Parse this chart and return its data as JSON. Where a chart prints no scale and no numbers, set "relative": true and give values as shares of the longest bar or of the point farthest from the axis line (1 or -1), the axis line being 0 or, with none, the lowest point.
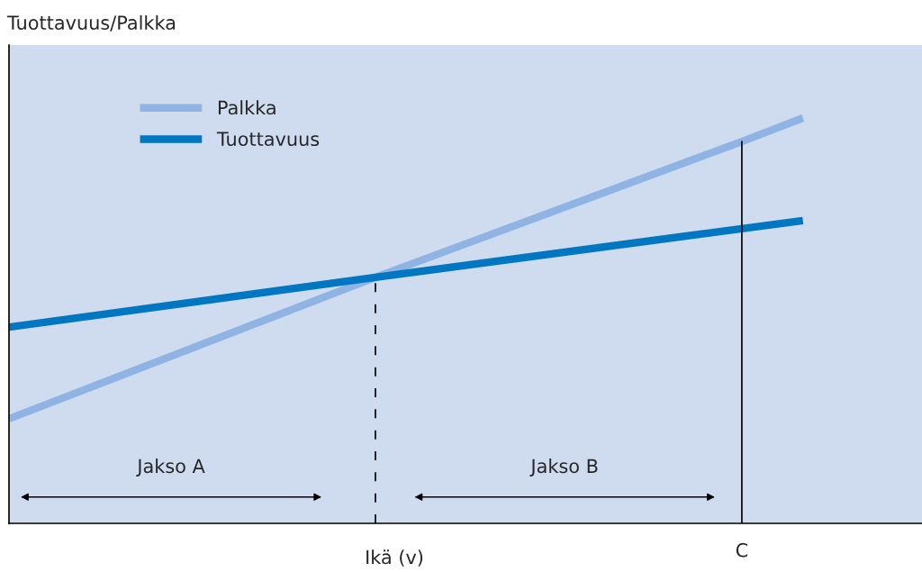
{
  "chart_data": {
    "type": "line",
    "relative": true,
    "ylabel": "Tuottavuus/Palkka",
    "xlabel": "Ikä (v)",
    "categories": [
      null,
      null,
      null,
      null,
      null,
      null,
      null,
      null,
      null,
      null,
      null,
      null,
      null,
      null
    ],
    "series": [
      {
        "name": "Palkka",
        "color": "#8fb4e3",
        "values": [
          0.258,
          null,
          null,
          null,
          null,
          null,
          0.607,
          null,
          null,
          null,
          null,
          null,
          0.942,
          1
        ]
      },
      {
        "name": "Tuottavuus",
        "color": "#0077c0",
        "values": [
          0.484,
          null,
          null,
          null,
          null,
          null,
          0.607,
          null,
          null,
          null,
          null,
          null,
          0.727,
          0.747
        ]
      }
    ],
    "annotations": [
      "Jakso A",
      "Jakso B",
      "C"
    ],
    "legend": "top left",
    "grid": false,
    "marker": "none",
    "line_style": "solid"
  }
}
